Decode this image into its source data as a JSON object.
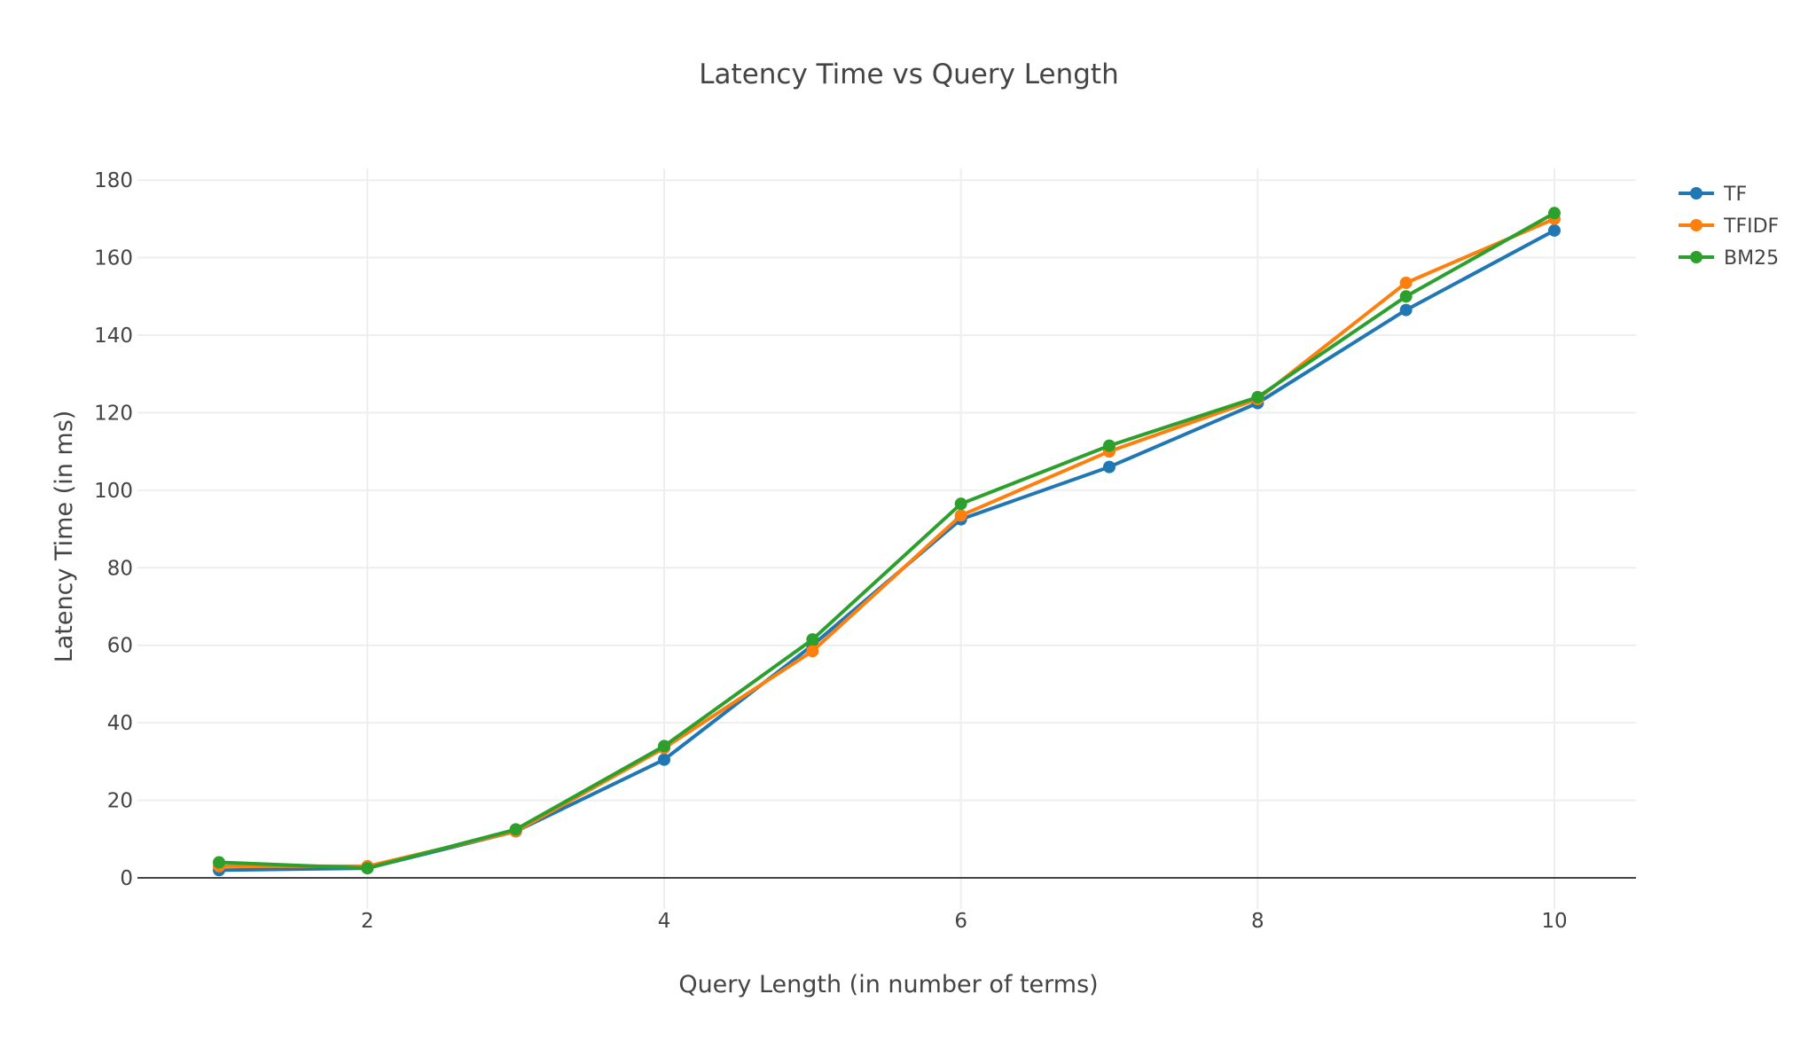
{
  "chart_data": {
    "type": "line",
    "title": "Latency Time vs Query Length",
    "xlabel": "Query Length (in number of terms)",
    "ylabel": "Latency Time (in ms)",
    "x": [
      1,
      2,
      3,
      4,
      5,
      6,
      7,
      8,
      9,
      10
    ],
    "xlim": [
      0.45,
      10.55
    ],
    "ylim": [
      -8,
      183
    ],
    "x_ticks": [
      2,
      4,
      6,
      8,
      10
    ],
    "y_ticks": [
      0,
      20,
      40,
      60,
      80,
      100,
      120,
      140,
      160,
      180
    ],
    "grid": true,
    "legend_position": "top-right",
    "series": [
      {
        "name": "TF",
        "color": "#1f77b4",
        "values": [
          2,
          2.5,
          12,
          30.5,
          60,
          92.5,
          106,
          122.5,
          146.5,
          167
        ]
      },
      {
        "name": "TFIDF",
        "color": "#ff7f0e",
        "values": [
          3,
          3,
          12,
          33.5,
          58.5,
          93.5,
          110,
          123.5,
          153.5,
          170
        ]
      },
      {
        "name": "BM25",
        "color": "#2ca02c",
        "values": [
          4,
          2.5,
          12.5,
          34,
          61.5,
          96.5,
          111.5,
          124,
          150,
          171.5
        ]
      }
    ]
  }
}
